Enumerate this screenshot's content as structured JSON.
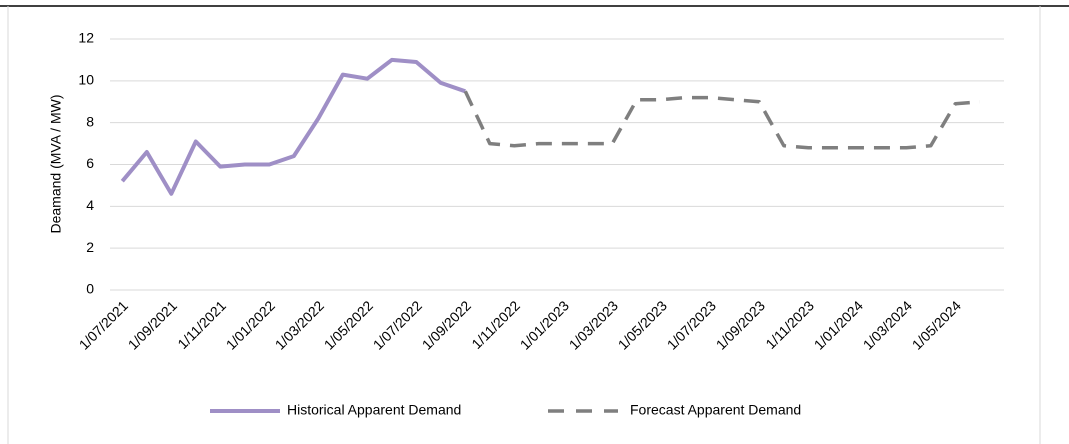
{
  "chart_data": {
    "type": "line",
    "y_label": "Deamand (MVA / MW)",
    "categories": [
      "1/07/2021",
      null,
      "1/09/2021",
      null,
      "1/11/2021",
      null,
      "1/01/2022",
      null,
      "1/03/2022",
      null,
      "1/05/2022",
      null,
      "1/07/2022",
      null,
      "1/09/2022",
      null,
      "1/11/2022",
      null,
      "1/01/2023",
      null,
      "1/03/2023",
      null,
      "1/05/2023",
      null,
      "1/07/2023",
      null,
      "1/09/2023",
      null,
      "1/11/2023",
      null,
      "1/01/2024",
      null,
      "1/03/2024",
      null,
      "1/05/2024",
      null
    ],
    "series": [
      {
        "name": "Historical Apparent Demand",
        "color": "#9f8fc6",
        "dashed": false,
        "values": [
          5.2,
          6.6,
          4.6,
          7.1,
          5.9,
          6.0,
          6.0,
          6.4,
          8.2,
          10.3,
          10.1,
          11.0,
          10.9,
          9.9,
          9.5,
          null,
          null,
          null,
          null,
          null,
          null,
          null,
          null,
          null,
          null,
          null,
          null,
          null,
          null,
          null,
          null,
          null,
          null,
          null,
          null,
          null
        ]
      },
      {
        "name": "Forecast Apparent Demand",
        "color": "#7f7f7f",
        "dashed": true,
        "values": [
          null,
          null,
          null,
          null,
          null,
          null,
          null,
          null,
          null,
          null,
          null,
          null,
          null,
          null,
          9.5,
          7.0,
          6.9,
          7.0,
          7.0,
          7.0,
          7.0,
          9.1,
          9.1,
          9.2,
          9.2,
          9.1,
          9.0,
          6.9,
          6.8,
          6.8,
          6.8,
          6.8,
          6.8,
          6.9,
          8.9,
          9.0
        ]
      }
    ],
    "ylim": [
      0,
      12
    ],
    "yticks": [
      0,
      2,
      4,
      6,
      8,
      10,
      12
    ],
    "grid": true,
    "legend": "bottom"
  }
}
